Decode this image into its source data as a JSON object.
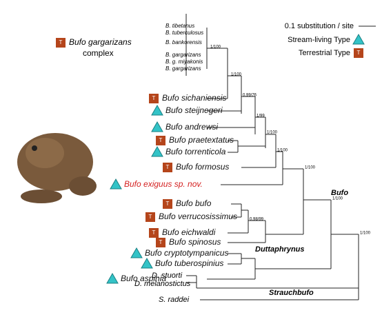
{
  "legend": {
    "scale": "0.1 substitution / site",
    "stream": "Stream-living Type",
    "terrestrial": "Terrestrial Type"
  },
  "icon_letter": "T",
  "complex_label": {
    "line1": "Bufo gargarizans",
    "line2": "complex"
  },
  "small_taxa": [
    "B. tibetanus",
    "B. tuberculosus",
    "B. bankorensis",
    "B. gargarizans",
    "B. g. miyakonis",
    "B. gargarizans"
  ],
  "species": [
    {
      "name": "Bufo sichaniensis",
      "type": "T"
    },
    {
      "name": "Bufo steijnegeri",
      "type": "S"
    },
    {
      "name": "Bufo andrewsi",
      "type": "S"
    },
    {
      "name": "Bufo praetextatus",
      "type": "T"
    },
    {
      "name": "Bufo torrenticola",
      "type": "S"
    },
    {
      "name": "Bufo formosus",
      "type": "T"
    },
    {
      "name": "Bufo exiguus sp. nov.",
      "type": "S"
    },
    {
      "name": "Bufo bufo",
      "type": "T"
    },
    {
      "name": "Bufo verrucosissimus",
      "type": "T"
    },
    {
      "name": "Bufo eichwaldi",
      "type": "T"
    },
    {
      "name": "Bufo spinosus",
      "type": "T"
    },
    {
      "name": "Bufo cryptotympanicus",
      "type": "S"
    },
    {
      "name": "Bufo tuberospinius",
      "type": "S"
    },
    {
      "name": "Bufo aspinia",
      "type": "S"
    }
  ],
  "outgroups": [
    "D. stuorti",
    "D. melanostictus",
    "S. raddei"
  ],
  "clades": [
    "Bufo",
    "Duttaphrynus",
    "Strauchbufo"
  ],
  "supports": [
    "1/100",
    "1/100",
    "0.99/76",
    "1/99",
    "1/100",
    "1/100",
    "1/100",
    "0.98/99",
    "1/100",
    "1/100"
  ]
}
